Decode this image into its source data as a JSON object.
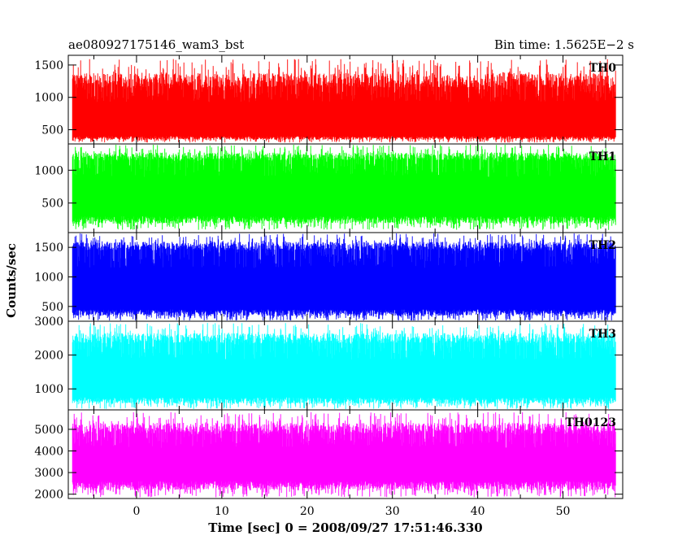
{
  "chart_data": {
    "type": "line",
    "title_left": "ae080927175146_wam3_bst",
    "title_right": "Bin time: 1.5625E−2 s",
    "xlabel": "Time [sec] 0 = 2008/09/27 17:51:46.330",
    "ylabel": "Counts/sec",
    "xlim": [
      -8,
      57
    ],
    "x_ticks": [
      0,
      10,
      20,
      30,
      40,
      50
    ],
    "x_range_data": [
      -7.5,
      56.2
    ],
    "grid": false,
    "panels": [
      {
        "name": "TH0",
        "color": "#ff0000",
        "ylim": [
          280,
          1650
        ],
        "y_ticks": [
          500,
          1000,
          1500
        ],
        "range": [
          300,
          1600
        ],
        "typical": [
          400,
          1150
        ]
      },
      {
        "name": "TH1",
        "color": "#00ff00",
        "ylim": [
          50,
          1400
        ],
        "y_ticks": [
          500,
          1000
        ],
        "range": [
          90,
          1390
        ],
        "typical": [
          300,
          1150
        ]
      },
      {
        "name": "TH2",
        "color": "#0000ff",
        "ylim": [
          250,
          1750
        ],
        "y_ticks": [
          500,
          1000,
          1500
        ],
        "range": [
          250,
          1740
        ],
        "typical": [
          450,
          1450
        ]
      },
      {
        "name": "TH3",
        "color": "#00ffff",
        "ylim": [
          380,
          3000
        ],
        "y_ticks": [
          1000,
          2000,
          3000
        ],
        "range": [
          400,
          2950
        ],
        "typical": [
          750,
          2350
        ]
      },
      {
        "name": "TH0123",
        "color": "#ff00ff",
        "ylim": [
          1800,
          5900
        ],
        "y_ticks": [
          2000,
          3000,
          4000,
          5000
        ],
        "range": [
          1850,
          5800
        ],
        "typical": [
          2600,
          4800
        ]
      }
    ]
  }
}
